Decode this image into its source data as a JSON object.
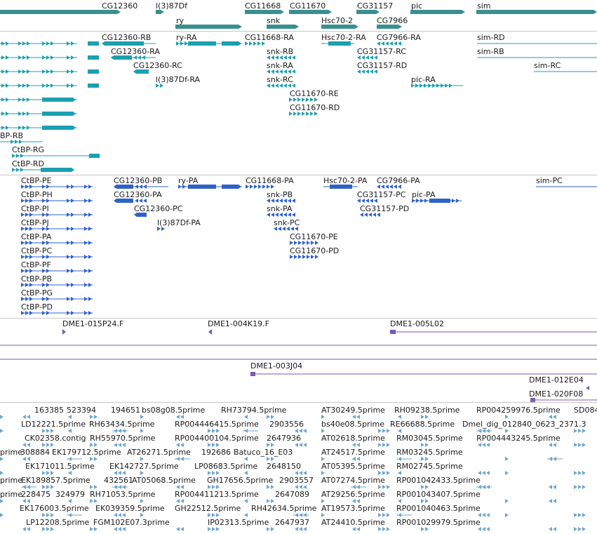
{
  "colors": {
    "gene": "#3a8f8f",
    "mrna": "#1ba0b0",
    "protein": "#2f62c8",
    "clone": "#7a5ab4",
    "est": "#6fa5cc",
    "separator": "#c8c8c8"
  },
  "tracks": {
    "genes": [
      "CG12360",
      "l(3)87Df",
      "CG11668",
      "CG11670",
      "CG31157",
      "pic",
      "sim",
      "ry",
      "snk",
      "Hsc70-2",
      "CG7966"
    ],
    "transcripts": [
      "CG12360-RB",
      "ry-RA",
      "CG11668-RA",
      "Hsc70-2-RA",
      "CG7966-RA",
      "sim-RD",
      "CG12360-RA",
      "snk-RB",
      "CG31157-RC",
      "sim-RB",
      "CG12360-RC",
      "snk-RA",
      "CG31157-RD",
      "sim-RC",
      "l(3)87Df-RA",
      "snk-RC",
      "pic-RA",
      "CG11670-RE",
      "CG11670-RD",
      "BP-RB",
      "CtBP-RG",
      "CtBP-RD"
    ],
    "proteins": [
      "CtBP-PE",
      "CG12360-PB",
      "ry-PA",
      "CG11668-PA",
      "Hsc70-2-PA",
      "CG7966-PA",
      "sim-PC",
      "CtBP-PH",
      "CG12360-PA",
      "snk-PB",
      "CG31157-PC",
      "pic-PA",
      "CtBP-PI",
      "CG12360-PC",
      "snk-PA",
      "CG31157-PD",
      "CtBP-PJ",
      "l(3)87Df-PA",
      "snk-PC",
      "CtBP-PA",
      "CG11670-PE",
      "CtBP-PC",
      "CG11670-PD",
      "CtBP-PF",
      "CtBP-PB",
      "CtBP-PG",
      "CtBP-PD"
    ],
    "clones": [
      "DME1-015P24.F",
      "DME1-004K19.F",
      "DME1-005L02",
      "DME1-003J04",
      "DME1-012E04",
      "DME1-020F08"
    ],
    "ests": [
      "163385",
      "523394",
      "194651",
      "bs08g08.5prime",
      "RH73794.5prime",
      "AT30249.5prime",
      "RH09238.5prime",
      "RP004259976.5prime",
      "SD084",
      "LD12221.5prime",
      "RH63434.5prime",
      "RP004446415.5prime",
      "2903556",
      "bs40e08.5prime",
      "RE66688.5prime",
      "Dmel_dig_012840_0623_2371.3",
      "CK02358.contig",
      "RH55970.5prime",
      "RP004400104.5prime",
      "2647936",
      "AT02618.5prime",
      "RM03045.5prime",
      "prime",
      "308884",
      "EK179712.5prime",
      "AT26271.5prime",
      "192686",
      "Batuco_16_E03",
      "AT24517.5prime",
      "RM03245.5prime",
      "RP004443245.5prime",
      "EK171011.5prime",
      "EK142727.5prime",
      "LP08683.5prime",
      "2648150",
      "AT05395.5prime",
      "RM02745.5prime",
      "EK189857.5prime",
      "432561",
      "AT05068.5prime",
      "GH17656.5prime",
      "2903557",
      "AT07274.5prime",
      "RP001042433.5prime",
      "228475",
      "324979",
      "RH71053.5prime",
      "RP004411213.5prime",
      "2647089",
      "AT29256.5prime",
      "RP001043407.5prime",
      "EK176003.5prime",
      "EK039359.5prime",
      "GH22512.5prime",
      "RH42634.5prime",
      "AT19573.5prime",
      "RP001040463.5prime",
      "LP12208.5prime",
      "FGM102E07.3prime",
      "IP02313.5prime",
      "2647937",
      "AT24410.5prime",
      "RP001029979.5prime"
    ]
  }
}
